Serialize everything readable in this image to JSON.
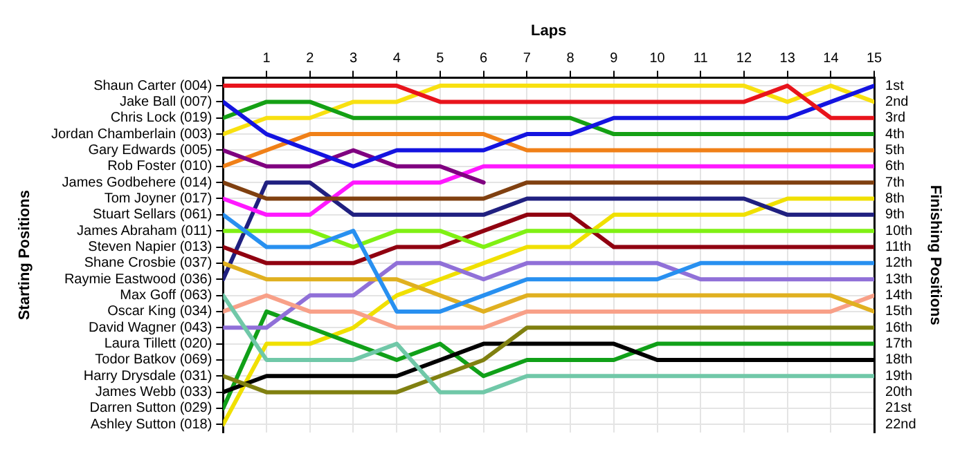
{
  "chart_data": {
    "type": "line",
    "xlabel": "Laps",
    "annotations": [
      "Starting Positions"
    ],
    "y2label": "Finishing Positions",
    "x": [
      0,
      1,
      2,
      3,
      4,
      5,
      6,
      7,
      8,
      9,
      10,
      11,
      12,
      13,
      14,
      15
    ],
    "xlim": [
      0,
      15
    ],
    "xticks": [
      1,
      2,
      3,
      4,
      5,
      6,
      7,
      8,
      9,
      10,
      11,
      12,
      13,
      14,
      15
    ],
    "y_categories": [
      "Shaun Carter (004)",
      "Jake Ball (007)",
      "Chris Lock (019)",
      "Jordan Chamberlain (003)",
      "Gary Edwards (005)",
      "Rob Foster (010)",
      "James Godbehere (014)",
      "Tom Joyner (017)",
      "Stuart Sellars (061)",
      "James Abraham (011)",
      "Steven Napier (013)",
      "Shane Crosbie (037)",
      "Raymie Eastwood (036)",
      "Max Goff (063)",
      "Oscar King (034)",
      "David Wagner (043)",
      "Laura Tillett (020)",
      "Todor Batkov (069)",
      "Harry Drysdale (031)",
      "James Webb (033)",
      "Darren Sutton (029)",
      "Ashley Sutton (018)"
    ],
    "y2lim": [
      22.5,
      0.5
    ],
    "y2ticks": [
      {
        "value": 1,
        "label": "1st"
      },
      {
        "value": 2,
        "label": "2nd"
      },
      {
        "value": 3,
        "label": "3rd"
      },
      {
        "value": 4,
        "label": "4th"
      },
      {
        "value": 5,
        "label": "5th"
      },
      {
        "value": 6,
        "label": "6th"
      },
      {
        "value": 7,
        "label": "7th"
      },
      {
        "value": 8,
        "label": "8th"
      },
      {
        "value": 9,
        "label": "9th"
      },
      {
        "value": 10,
        "label": "10th"
      },
      {
        "value": 11,
        "label": "11th"
      },
      {
        "value": 12,
        "label": "12th"
      },
      {
        "value": 13,
        "label": "13th"
      },
      {
        "value": 14,
        "label": "14th"
      },
      {
        "value": 15,
        "label": "15th"
      },
      {
        "value": 16,
        "label": "16th"
      },
      {
        "value": 17,
        "label": "17th"
      },
      {
        "value": 18,
        "label": "18th"
      },
      {
        "value": 19,
        "label": "19th"
      },
      {
        "value": 20,
        "label": "20th"
      },
      {
        "value": 21,
        "label": "21st"
      },
      {
        "value": 22,
        "label": "22nd"
      }
    ],
    "grid": true,
    "legend": false,
    "marker": "none",
    "line_style": "solid",
    "series": [
      {
        "axis": "y2",
        "color": "#e8141c",
        "values": [
          1,
          1,
          1,
          1,
          1,
          2,
          2,
          2,
          2,
          2,
          2,
          2,
          2,
          1,
          3,
          3
        ]
      },
      {
        "axis": "y2",
        "color": "#1414e0",
        "values": [
          2,
          4,
          5,
          6,
          5,
          5,
          5,
          4,
          4,
          3,
          3,
          3,
          3,
          3,
          2,
          1
        ]
      },
      {
        "axis": "y2",
        "color": "#14a014",
        "values": [
          3,
          2,
          2,
          3,
          3,
          3,
          3,
          3,
          3,
          4,
          4,
          4,
          4,
          4,
          4,
          4
        ]
      },
      {
        "axis": "y2",
        "color": "#f8e010",
        "values": [
          4,
          3,
          3,
          2,
          2,
          1,
          1,
          1,
          1,
          1,
          1,
          1,
          1,
          2,
          1,
          2
        ]
      },
      {
        "axis": "y2",
        "color": "#800080",
        "values": [
          5,
          6,
          6,
          5,
          6,
          6,
          7,
          null,
          null,
          null,
          null,
          null,
          null,
          null,
          null,
          null
        ]
      },
      {
        "axis": "y2",
        "color": "#f08018",
        "values": [
          6,
          5,
          4,
          4,
          4,
          4,
          4,
          5,
          5,
          5,
          5,
          5,
          5,
          5,
          5,
          5
        ]
      },
      {
        "axis": "y2",
        "color": "#804010",
        "values": [
          7,
          8,
          8,
          8,
          8,
          8,
          8,
          7,
          7,
          7,
          7,
          7,
          7,
          7,
          7,
          7
        ]
      },
      {
        "axis": "y2",
        "color": "#ff18ff",
        "values": [
          8,
          9,
          9,
          7,
          7,
          7,
          6,
          6,
          6,
          6,
          6,
          6,
          6,
          6,
          6,
          6
        ]
      },
      {
        "axis": "y2",
        "color": "#2890f0",
        "values": [
          9,
          11,
          11,
          10,
          15,
          15,
          14,
          13,
          13,
          13,
          13,
          12,
          12,
          12,
          12,
          12
        ]
      },
      {
        "axis": "y2",
        "color": "#80f014",
        "values": [
          10,
          10,
          10,
          11,
          10,
          10,
          11,
          10,
          10,
          10,
          10,
          10,
          10,
          10,
          10,
          10
        ]
      },
      {
        "axis": "y2",
        "color": "#900010",
        "values": [
          11,
          12,
          12,
          12,
          11,
          11,
          10,
          9,
          9,
          11,
          11,
          11,
          11,
          11,
          11,
          11
        ]
      },
      {
        "axis": "y2",
        "color": "#e0b020",
        "values": [
          12,
          13,
          13,
          13,
          13,
          14,
          15,
          14,
          14,
          14,
          14,
          14,
          14,
          14,
          14,
          15
        ]
      },
      {
        "axis": "y2",
        "color": "#202080",
        "values": [
          13,
          7,
          7,
          9,
          9,
          9,
          9,
          8,
          8,
          8,
          8,
          8,
          8,
          9,
          9,
          9
        ]
      },
      {
        "axis": "y2",
        "color": "#70c8a8",
        "values": [
          14,
          18,
          18,
          18,
          17,
          20,
          20,
          19,
          19,
          19,
          19,
          19,
          19,
          19,
          19,
          19
        ]
      },
      {
        "axis": "y2",
        "color": "#f8a088",
        "values": [
          15,
          14,
          15,
          15,
          16,
          16,
          16,
          15,
          15,
          15,
          15,
          15,
          15,
          15,
          15,
          14
        ]
      },
      {
        "axis": "y2",
        "color": "#9070d8",
        "values": [
          16,
          16,
          14,
          14,
          12,
          12,
          13,
          12,
          12,
          12,
          12,
          13,
          13,
          13,
          13,
          13
        ]
      },
      {
        "axis": "y2",
        "color": "#808010",
        "values": [
          19,
          20,
          20,
          20,
          20,
          19,
          18,
          16,
          16,
          16,
          16,
          16,
          16,
          16,
          16,
          16
        ]
      },
      {
        "axis": "y2",
        "color": "#000000",
        "values": [
          20,
          19,
          19,
          19,
          19,
          18,
          17,
          17,
          17,
          17,
          18,
          18,
          18,
          18,
          18,
          18
        ]
      },
      {
        "axis": "y2",
        "color": "#10a018",
        "values": [
          21,
          15,
          16,
          17,
          18,
          17,
          19,
          18,
          18,
          18,
          17,
          17,
          17,
          17,
          17,
          17
        ]
      },
      {
        "axis": "y2",
        "color": "#f0e000",
        "values": [
          22,
          17,
          17,
          16,
          14,
          13,
          12,
          11,
          11,
          9,
          9,
          9,
          9,
          8,
          8,
          8
        ]
      }
    ]
  }
}
